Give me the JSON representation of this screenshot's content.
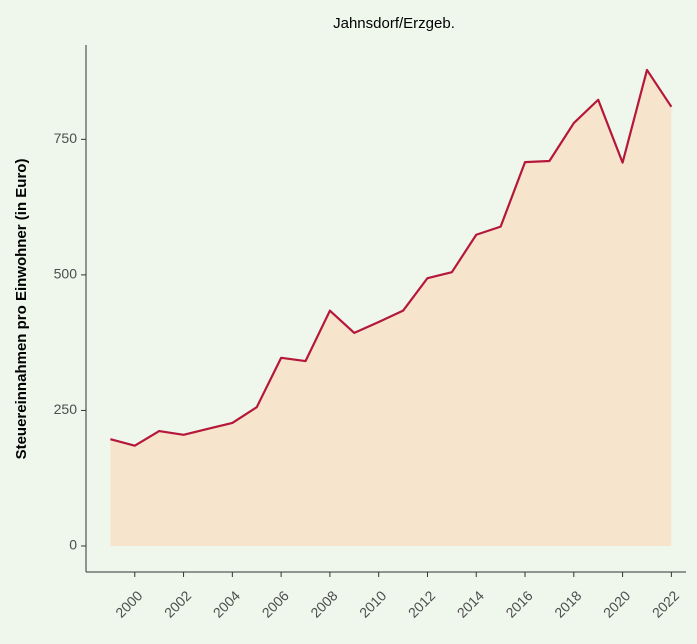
{
  "chart_data": {
    "type": "area",
    "title": "Jahnsdorf/Erzgeb.",
    "y_label": "Steuereinnahmen pro Einwohner (in Euro)",
    "x": [
      1999,
      2000,
      2001,
      2002,
      2003,
      2004,
      2005,
      2006,
      2007,
      2008,
      2009,
      2010,
      2011,
      2012,
      2013,
      2014,
      2015,
      2016,
      2017,
      2018,
      2019,
      2020,
      2021,
      2022
    ],
    "series": [
      {
        "name": "Jahnsdorf/Erzgeb.",
        "color": "#b5173a",
        "fill": "#f7e4cc",
        "values": [
          197,
          185,
          212,
          205,
          216,
          227,
          256,
          347,
          341,
          434,
          393,
          413,
          434,
          494,
          505,
          574,
          589,
          708,
          710,
          780,
          823,
          707,
          878,
          810
        ]
      }
    ],
    "xlim": [
      1998,
      2022.6
    ],
    "xticks": [
      2000,
      2002,
      2004,
      2006,
      2008,
      2010,
      2012,
      2014,
      2016,
      2018,
      2020,
      2022
    ],
    "ylim": [
      -48,
      924
    ],
    "yticks": [
      0,
      250,
      500,
      750
    ],
    "grid": false
  }
}
